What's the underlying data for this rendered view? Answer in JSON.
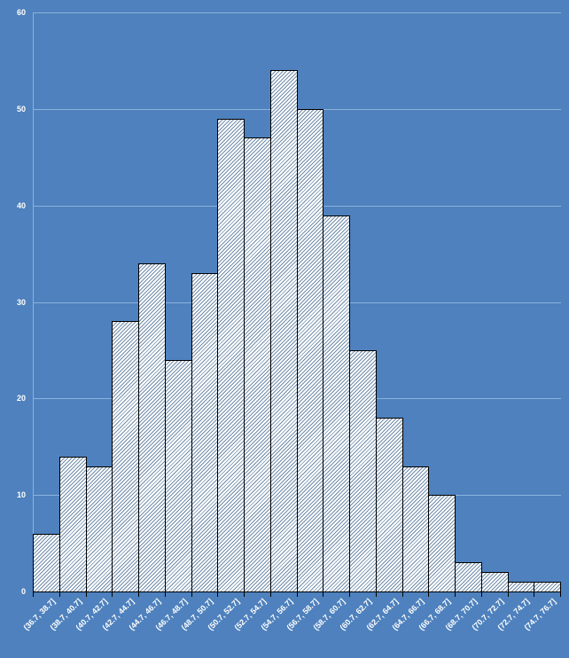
{
  "chart_data": {
    "type": "bar",
    "subtype": "histogram",
    "title": "",
    "xlabel": "",
    "ylabel": "",
    "categories": [
      "(36.7, 38.7]",
      "(38.7, 40.7]",
      "(40.7, 42.7]",
      "(42.7, 44.7]",
      "(44.7, 46.7]",
      "(46.7, 48.7]",
      "(48.7, 50.7]",
      "(50.7, 52.7]",
      "(52.7, 54.7]",
      "(54.7, 56.7]",
      "(56.7, 58.7]",
      "(58.7, 60.7]",
      "(60.7, 62.7]",
      "(62.7, 64.7]",
      "(64.7, 66.7]",
      "(66.7, 68.7]",
      "(68.7, 70.7]",
      "(70.7, 72.7]",
      "(72.7, 74.7]",
      "(74.7, 76.7]"
    ],
    "values": [
      6,
      14,
      13,
      28,
      34,
      24,
      33,
      49,
      47,
      54,
      50,
      39,
      25,
      18,
      13,
      10,
      3,
      2,
      1,
      1
    ],
    "ylim": [
      0,
      60
    ],
    "yticks": [
      0,
      10,
      20,
      30,
      40,
      50,
      60
    ],
    "grid": "horizontal",
    "legend": "none",
    "bar_style": "white fill with fine diagonal hatch, black outline",
    "colors": {
      "background": "#4E81BD",
      "gridline": "#8DB2DE",
      "bar_fill": "#FFFFFF",
      "bar_hatch": "#6080A0",
      "bar_border": "#000000",
      "axis_tick": "#000000",
      "tick_label": "#FFFFFF"
    }
  }
}
